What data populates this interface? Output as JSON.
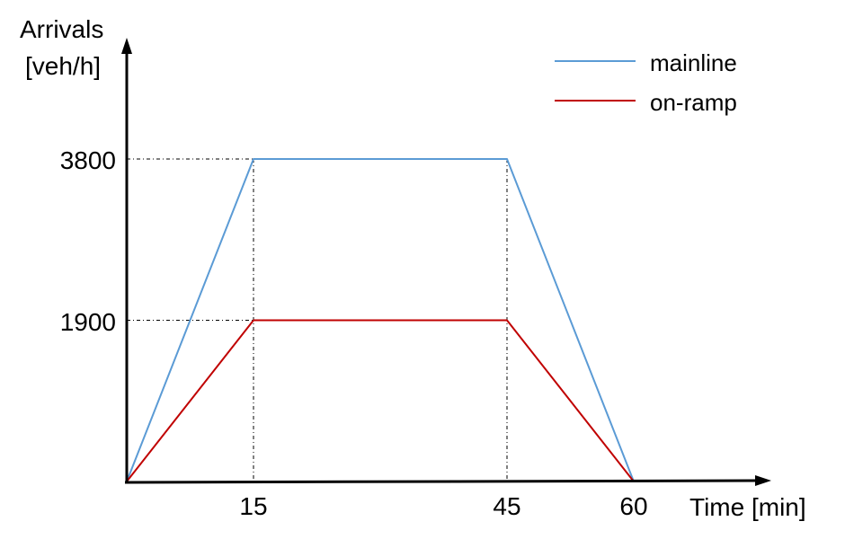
{
  "chart_data": {
    "type": "line",
    "ylabel_line1": "Arrivals",
    "ylabel_line2": "[veh/h]",
    "xlabel": "Time [min]",
    "x_ticks": [
      "15",
      "45",
      "60"
    ],
    "y_ticks": [
      "3800",
      "1900"
    ],
    "xlim": [
      0,
      60
    ],
    "ylim": [
      0,
      3800
    ],
    "grid": false,
    "legend_position": "top-right",
    "series": [
      {
        "name": "mainline",
        "color": "#5b9bd5",
        "points": [
          [
            0,
            0
          ],
          [
            15,
            3800
          ],
          [
            45,
            3800
          ],
          [
            60,
            0
          ]
        ]
      },
      {
        "name": "on-ramp",
        "color": "#c00000",
        "points": [
          [
            0,
            0
          ],
          [
            15,
            1900
          ],
          [
            45,
            1900
          ],
          [
            60,
            0
          ]
        ]
      }
    ],
    "guide_lines": {
      "x": [
        15,
        45
      ],
      "y": [
        3800,
        1900
      ]
    }
  }
}
